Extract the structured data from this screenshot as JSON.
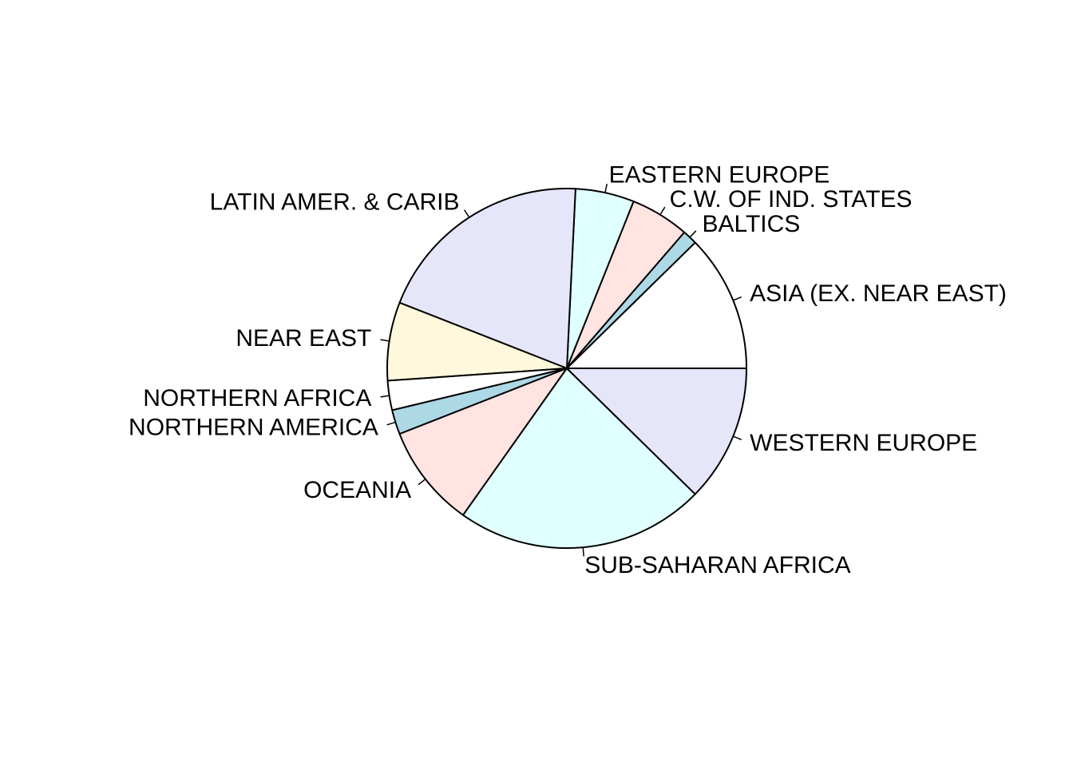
{
  "chart_data": {
    "type": "pie",
    "title": "",
    "slices": [
      {
        "label": "ASIA (EX. NEAR EAST)",
        "value": 28,
        "color": "#ffffff"
      },
      {
        "label": "BALTICS",
        "value": 3,
        "color": "#add8e6"
      },
      {
        "label": "C.W. OF IND. STATES",
        "value": 12,
        "color": "#ffe4e1"
      },
      {
        "label": "EASTERN EUROPE",
        "value": 12,
        "color": "#e0ffff"
      },
      {
        "label": "LATIN AMER. & CARIB",
        "value": 45,
        "color": "#e6e6fa"
      },
      {
        "label": "NEAR EAST",
        "value": 16,
        "color": "#fff8dc"
      },
      {
        "label": "NORTHERN AFRICA",
        "value": 6,
        "color": "#ffffff"
      },
      {
        "label": "NORTHERN AMERICA",
        "value": 5,
        "color": "#add8e6"
      },
      {
        "label": "OCEANIA",
        "value": 21,
        "color": "#ffe4e1"
      },
      {
        "label": "SUB-SAHARAN AFRICA",
        "value": 51,
        "color": "#e0ffff"
      },
      {
        "label": "WESTERN EUROPE",
        "value": 28,
        "color": "#e6e6fa"
      }
    ],
    "start_angle_deg": 0,
    "direction": "counterclockwise",
    "legend": "none"
  }
}
